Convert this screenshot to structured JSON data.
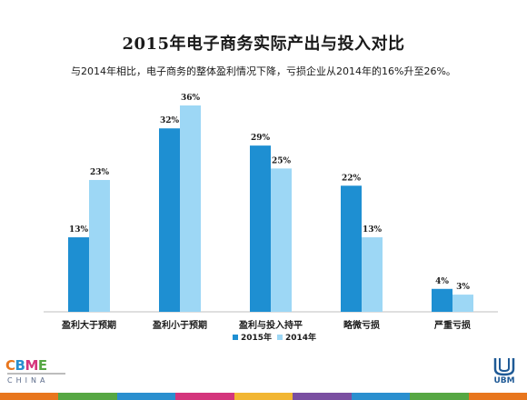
{
  "title": "2015年电子商务实际产出与投入对比",
  "subtitle": "与2014年相比，电子商务的整体盈利情况下降，亏损企业从2014年的16%升至26%。",
  "logos": {
    "left_brand": "CBME",
    "left_city": "CHINA",
    "right_brand": "UBM"
  },
  "colors": {
    "series_2015": "#1e8fd2",
    "series_2014": "#9dd7f5",
    "axis": "#bfbfbf",
    "footer": [
      "#e8761d",
      "#56a743",
      "#2a8fcf",
      "#d4357c",
      "#f2b632",
      "#7a4fa1",
      "#2a8fcf",
      "#56a743",
      "#e8761d"
    ]
  },
  "chart_data": {
    "type": "bar",
    "title": "2015年电子商务实际产出与投入对比",
    "categories": [
      "盈利大于预期",
      "盈利小于预期",
      "盈利与投入持平",
      "略微亏损",
      "严重亏损"
    ],
    "series": [
      {
        "name": "2015年",
        "values": [
          13,
          32,
          29,
          22,
          4
        ],
        "labels": [
          "13%",
          "32%",
          "29%",
          "22%",
          "4%"
        ]
      },
      {
        "name": "2014年",
        "values": [
          23,
          36,
          25,
          13,
          3
        ],
        "labels": [
          "23%",
          "36%",
          "25%",
          "13%",
          "3%"
        ]
      }
    ],
    "ylim": [
      0,
      36
    ],
    "unit": "%",
    "grid": false,
    "legend": "bottom-center"
  }
}
